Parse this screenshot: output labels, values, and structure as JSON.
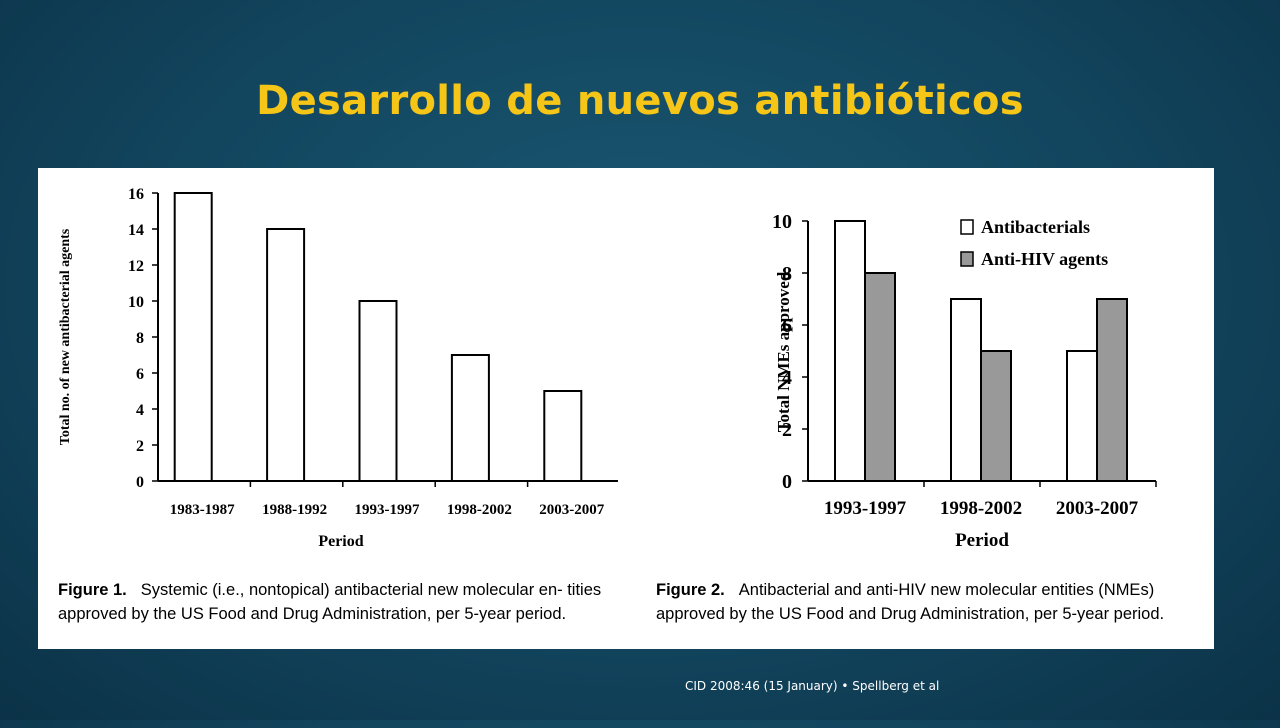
{
  "slide": {
    "title": "Desarrollo de nuevos antibióticos",
    "citation": "CID 2008:46 (15 January) • Spellberg et al"
  },
  "captions": [
    {
      "label": "Figure 1.",
      "text": "Systemic (i.e., nontopical) antibacterial new molecular en- tities approved by the US Food and Drug Administration, per 5-year period."
    },
    {
      "label": "Figure 2.",
      "text": "Antibacterial and anti-HIV new molecular entities (NMEs) approved by the US Food and Drug Administration, per 5-year period."
    }
  ],
  "chart_data": [
    {
      "type": "bar",
      "categories": [
        "1983-1987",
        "1988-1992",
        "1993-1997",
        "1998-2002",
        "2003-2007"
      ],
      "values": [
        16,
        14,
        10,
        7,
        5
      ],
      "xlabel": "Period",
      "ylabel": "Total no. of new antibacterial agents",
      "ylim": [
        0,
        16
      ],
      "yticks": [
        0,
        2,
        4,
        6,
        8,
        10,
        12,
        14,
        16
      ],
      "grid": false,
      "bar_color": "#ffffff"
    },
    {
      "type": "bar",
      "categories": [
        "1993-1997",
        "1998-2002",
        "2003-2007"
      ],
      "series": [
        {
          "name": "Antibacterials",
          "values": [
            10,
            7,
            5
          ],
          "color": "#ffffff"
        },
        {
          "name": "Anti-HIV agents",
          "values": [
            8,
            5,
            7
          ],
          "color": "#999999"
        }
      ],
      "xlabel": "Period",
      "ylabel": "Total NMEs approved",
      "ylim": [
        0,
        10
      ],
      "yticks": [
        0,
        2,
        4,
        6,
        8,
        10
      ],
      "grid": false,
      "legend": "top-right"
    }
  ]
}
